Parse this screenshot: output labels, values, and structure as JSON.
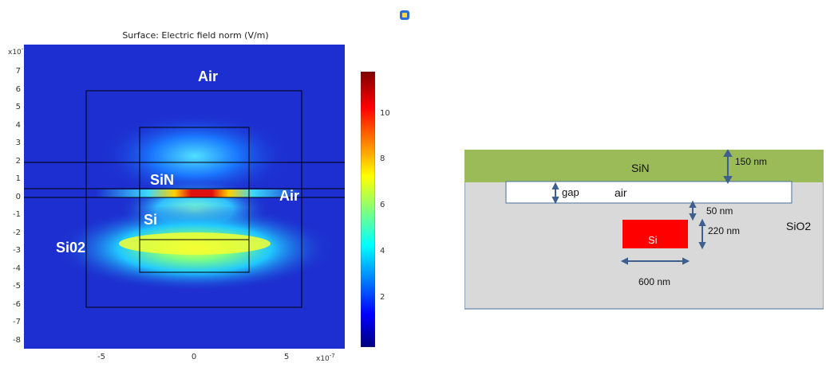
{
  "plot": {
    "title": "Surface: Electric field norm (V/m)",
    "y_exponent": "x10",
    "y_exponent_power": "-7",
    "x_exponent": "x10",
    "x_exponent_power": "-7",
    "y_ticks": [
      "7",
      "6",
      "5",
      "4",
      "3",
      "2",
      "1",
      "0",
      "-1",
      "-2",
      "-3",
      "-4",
      "-5",
      "-6",
      "-7",
      "-8"
    ],
    "x_ticks": [
      "-5",
      "0",
      "5"
    ],
    "colorbar_ticks": [
      "10",
      "8",
      "6",
      "4",
      "2"
    ],
    "labels": {
      "air_top": "Air",
      "sin": "SiN",
      "air_right": "Air",
      "si": "Si",
      "sio2": "Si02"
    }
  },
  "schematic": {
    "sin_label": "SiN",
    "sin_thickness": "150 nm",
    "gap_label": "gap",
    "air_label": "air",
    "spacing": "50 nm",
    "si_height": "220 nm",
    "si_label": "Si",
    "si_width": "600 nm",
    "sio2_label": "SiO2",
    "colors": {
      "sin": "#9bbb59",
      "sio2": "#d9d9d9",
      "si": "#ff0000",
      "air": "#ffffff"
    }
  },
  "toolbar": {
    "icon": "window-icon"
  }
}
